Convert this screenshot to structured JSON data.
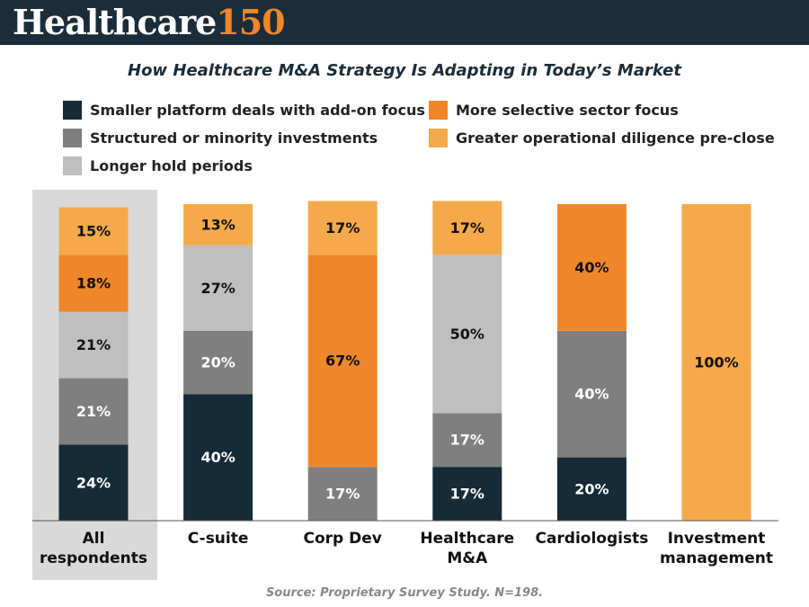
{
  "header": {
    "brand": "Healthcare",
    "brand_number": "150"
  },
  "chart_data": {
    "type": "stacked_bar",
    "title": "How Healthcare M&A Strategy Is Adapting in Today’s Market",
    "source": "Source: Proprietary Survey Study. N=198.",
    "categories": [
      "All respondents",
      "C-suite",
      "Corp Dev",
      "Healthcare M&A",
      "Cardiologists",
      "Investment management"
    ],
    "highlight_category": 0,
    "ylim": [
      0,
      100
    ],
    "series": [
      {
        "name": "Smaller platform deals with add-on focus",
        "color": "#152b37",
        "values": [
          24,
          40,
          null,
          17,
          20,
          null
        ],
        "value_labels": [
          "24%",
          "40%",
          null,
          "17%",
          "20%",
          null
        ]
      },
      {
        "name": "Structured or minority investments",
        "color": "#7f7f7f",
        "values": [
          21,
          20,
          17,
          17,
          40,
          null
        ],
        "value_labels": [
          "21%",
          "20%",
          "17%",
          "17%",
          "40%",
          null
        ]
      },
      {
        "name": "Longer hold periods",
        "color": "#bfbfbf",
        "values": [
          21,
          27,
          null,
          50,
          null,
          null
        ],
        "value_labels": [
          "21%",
          "27%",
          null,
          "50%",
          null,
          null
        ]
      },
      {
        "name": "More selective sector focus",
        "color": "#f0862a",
        "values": [
          18,
          null,
          67,
          null,
          40,
          null
        ],
        "value_labels": [
          "18%",
          null,
          "67%",
          null,
          "40%",
          null
        ]
      },
      {
        "name": "Greater operational diligence pre-close",
        "color": "#f5a94a",
        "values": [
          15,
          13,
          17,
          17,
          null,
          100
        ],
        "value_labels": [
          "15%",
          "13%",
          "17%",
          "17%",
          null,
          "100%"
        ]
      }
    ]
  }
}
